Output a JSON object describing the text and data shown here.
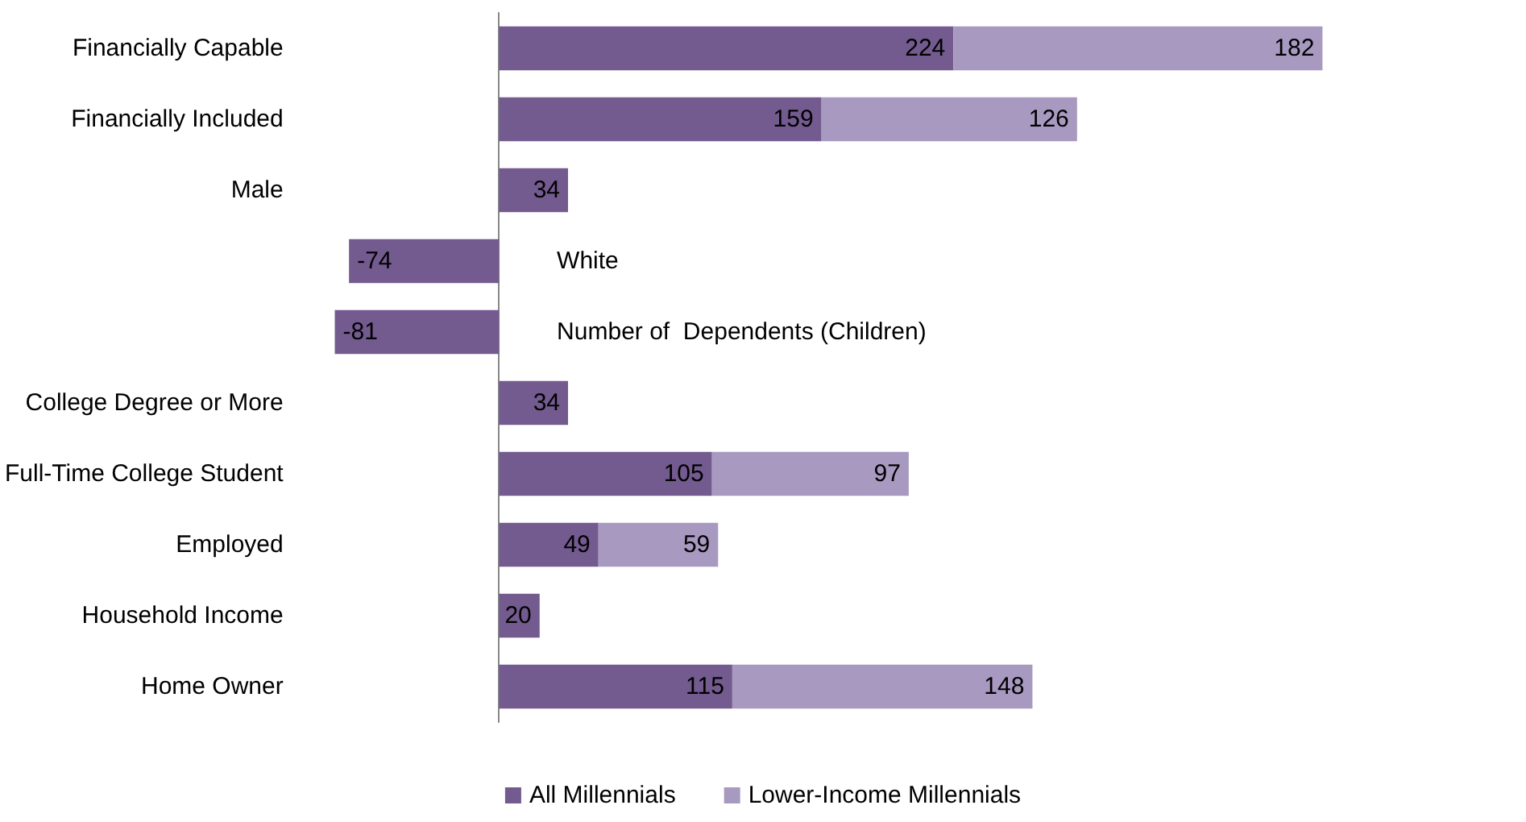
{
  "chart_data": {
    "type": "bar",
    "orientation": "horizontal",
    "stacked": true,
    "data_labels": true,
    "legend": "bottom",
    "categories": [
      "Financially Capable",
      "Financially Included",
      "Male",
      "White",
      "Number of  Dependents (Children)",
      "College Degree or More",
      "Full-Time College Student",
      "Employed",
      "Household Income",
      "Home Owner"
    ],
    "series": [
      {
        "name": "All Millennials",
        "color": "#735a8f",
        "values": [
          224,
          159,
          34,
          -74,
          -81,
          34,
          105,
          49,
          20,
          115
        ]
      },
      {
        "name": "Lower-Income Millennials",
        "color": "#a899c0",
        "values": [
          182,
          126,
          null,
          null,
          null,
          null,
          97,
          59,
          null,
          148
        ]
      }
    ]
  }
}
